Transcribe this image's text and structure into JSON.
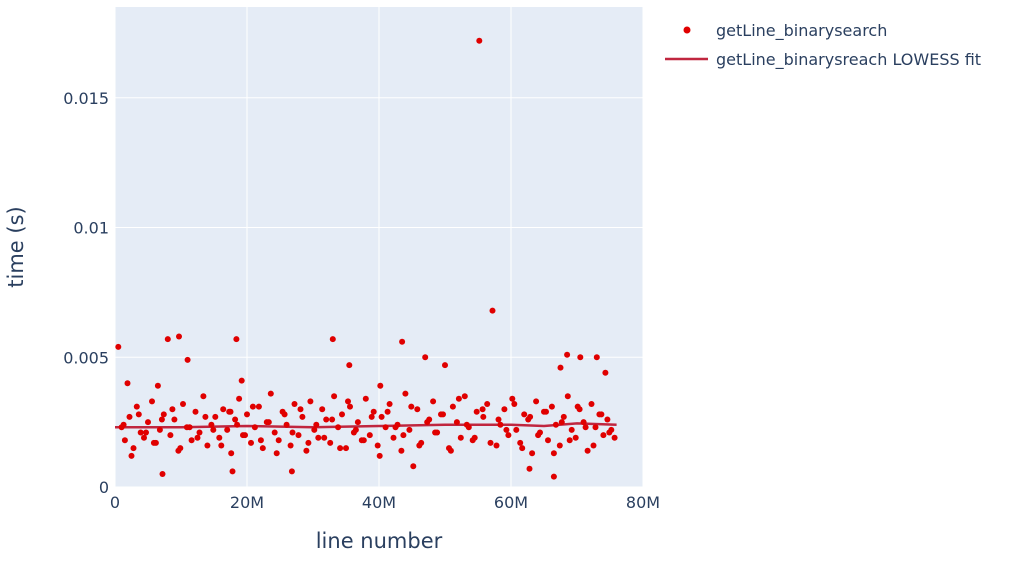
{
  "chart_data": {
    "type": "scatter",
    "title": "",
    "xlabel": "line number",
    "ylabel": "time (s)",
    "xlim": [
      0,
      80000000
    ],
    "ylim": [
      0,
      0.0185
    ],
    "x_ticks": [
      0,
      20000000,
      40000000,
      60000000,
      80000000
    ],
    "x_tick_labels": [
      "0",
      "20M",
      "40M",
      "60M",
      "80M"
    ],
    "y_ticks": [
      0,
      0.005,
      0.01,
      0.015
    ],
    "y_tick_labels": [
      "0",
      "0.005",
      "0.01",
      "0.015"
    ],
    "grid": true,
    "legend_position": "top-right outside",
    "colors": {
      "plot_bg": "#e5ecf6",
      "grid": "#ffffff",
      "points": "#e00000",
      "fit": "#c0263f",
      "text": "#2a3f5f"
    },
    "series": [
      {
        "name": "getLine_binarysearch",
        "mode": "markers",
        "x": [
          500000,
          1900000,
          6500000,
          8000000,
          9700000,
          11000000,
          17500000,
          18400000,
          19200000,
          33000000,
          35500000,
          40200000,
          43500000,
          47000000,
          50000000,
          55200000,
          57200000,
          67500000,
          68500000,
          70500000,
          73000000,
          74300000,
          7200000,
          17800000,
          26800000,
          45200000,
          62800000,
          66500000,
          1000000,
          1500000,
          2200000,
          2800000,
          3300000,
          3900000,
          4400000,
          5000000,
          5600000,
          6200000,
          6800000,
          7400000,
          8400000,
          9000000,
          9600000,
          10300000,
          10900000,
          11600000,
          12200000,
          12800000,
          13400000,
          14000000,
          14600000,
          15200000,
          15800000,
          16400000,
          17000000,
          17600000,
          18200000,
          18800000,
          19400000,
          20000000,
          20600000,
          21200000,
          21800000,
          22400000,
          23000000,
          23600000,
          24200000,
          24800000,
          25400000,
          26000000,
          26600000,
          27200000,
          27800000,
          28400000,
          29000000,
          29600000,
          30200000,
          30800000,
          31400000,
          32000000,
          32600000,
          33200000,
          33800000,
          34400000,
          35000000,
          35600000,
          36200000,
          36800000,
          37400000,
          38000000,
          38600000,
          39200000,
          39800000,
          40400000,
          41000000,
          41600000,
          42200000,
          42800000,
          43400000,
          44000000,
          44600000,
          45800000,
          46400000,
          47600000,
          48200000,
          48800000,
          49400000,
          50600000,
          51200000,
          51800000,
          52400000,
          53000000,
          53600000,
          54200000,
          54800000,
          55800000,
          56400000,
          57800000,
          58400000,
          59000000,
          59600000,
          60200000,
          60800000,
          61400000,
          62000000,
          62600000,
          63200000,
          63800000,
          64400000,
          65000000,
          65600000,
          66200000,
          66800000,
          67400000,
          68000000,
          68600000,
          69200000,
          69800000,
          70400000,
          71000000,
          71600000,
          72200000,
          72800000,
          73400000,
          74000000,
          74600000,
          75200000,
          75700000,
          1300000,
          2500000,
          3600000,
          4700000,
          5900000,
          7100000,
          8700000,
          9900000,
          11300000,
          12500000,
          13700000,
          14900000,
          16100000,
          17300000,
          18500000,
          19700000,
          20900000,
          22100000,
          23300000,
          24500000,
          25700000,
          26900000,
          28100000,
          29300000,
          30500000,
          31700000,
          32900000,
          34100000,
          35300000,
          36500000,
          37700000,
          38900000,
          40100000,
          41300000,
          42500000,
          43700000,
          44900000,
          46100000,
          47300000,
          48500000,
          49700000,
          50900000,
          52100000,
          53300000,
          54500000,
          55700000,
          56900000,
          58100000,
          59300000,
          60500000,
          61700000,
          62900000,
          64100000,
          65300000,
          66500000,
          67700000,
          68900000,
          70100000,
          71300000,
          72500000,
          73700000,
          74900000
        ],
        "y": [
          0.0054,
          0.004,
          0.0039,
          0.0057,
          0.0058,
          0.0049,
          0.0029,
          0.0057,
          0.0041,
          0.0057,
          0.0047,
          0.0039,
          0.0056,
          0.005,
          0.0047,
          0.0172,
          0.0068,
          0.0046,
          0.0051,
          0.005,
          0.005,
          0.0044,
          0.0005,
          0.0006,
          0.0006,
          0.0008,
          0.0007,
          0.0004,
          0.0023,
          0.0018,
          0.0027,
          0.0015,
          0.0031,
          0.0021,
          0.0019,
          0.0025,
          0.0033,
          0.0017,
          0.0022,
          0.0028,
          0.002,
          0.0026,
          0.0014,
          0.0032,
          0.0023,
          0.0018,
          0.0029,
          0.0021,
          0.0035,
          0.0016,
          0.0024,
          0.0027,
          0.0019,
          0.003,
          0.0022,
          0.0013,
          0.0026,
          0.0034,
          0.002,
          0.0028,
          0.0017,
          0.0023,
          0.0031,
          0.0015,
          0.0025,
          0.0036,
          0.0021,
          0.0018,
          0.0029,
          0.0024,
          0.0016,
          0.0032,
          0.002,
          0.0027,
          0.0014,
          0.0033,
          0.0022,
          0.0019,
          0.003,
          0.0026,
          0.0017,
          0.0035,
          0.0023,
          0.0028,
          0.0015,
          0.0031,
          0.0021,
          0.0025,
          0.0018,
          0.0034,
          0.002,
          0.0029,
          0.0016,
          0.0027,
          0.0023,
          0.0032,
          0.0019,
          0.0024,
          0.0014,
          0.0036,
          0.0022,
          0.003,
          0.0017,
          0.0026,
          0.0033,
          0.0021,
          0.0028,
          0.0015,
          0.0031,
          0.0025,
          0.0019,
          0.0035,
          0.0023,
          0.0018,
          0.0029,
          0.0027,
          0.0032,
          0.0016,
          0.0024,
          0.003,
          0.002,
          0.0034,
          0.0022,
          0.0017,
          0.0028,
          0.0026,
          0.0013,
          0.0033,
          0.0021,
          0.0029,
          0.0018,
          0.0031,
          0.0024,
          0.0016,
          0.0027,
          0.0035,
          0.0022,
          0.0019,
          0.003,
          0.0025,
          0.0014,
          0.0032,
          0.0023,
          0.0028,
          0.002,
          0.0026,
          0.0022,
          0.0019,
          0.0024,
          0.0012,
          0.0028,
          0.0021,
          0.0017,
          0.0026,
          0.003,
          0.0015,
          0.0023,
          0.0019,
          0.0027,
          0.0022,
          0.0016,
          0.0029,
          0.0024,
          0.002,
          0.0031,
          0.0018,
          0.0025,
          0.0013,
          0.0028,
          0.0021,
          0.003,
          0.0017,
          0.0024,
          0.0019,
          0.0026,
          0.0015,
          0.0033,
          0.0022,
          0.0018,
          0.0027,
          0.0012,
          0.0029,
          0.0023,
          0.002,
          0.0031,
          0.0016,
          0.0025,
          0.0021,
          0.0028,
          0.0014,
          0.0034,
          0.0024,
          0.0019,
          0.003,
          0.0017,
          0.0026,
          0.0022,
          0.0032,
          0.0015,
          0.0027,
          0.002,
          0.0029,
          0.0013,
          0.0025,
          0.0018,
          0.0031,
          0.0023,
          0.0016,
          0.0028,
          0.0021
        ]
      },
      {
        "name": "getLine_binarysreach LOWESS fit",
        "mode": "lines",
        "x": [
          0,
          10000000,
          20000000,
          30000000,
          40000000,
          50000000,
          60000000,
          65000000,
          70000000,
          76000000
        ],
        "y": [
          0.0023,
          0.0023,
          0.00235,
          0.0023,
          0.00235,
          0.0024,
          0.0024,
          0.00235,
          0.00245,
          0.0024
        ]
      }
    ]
  }
}
